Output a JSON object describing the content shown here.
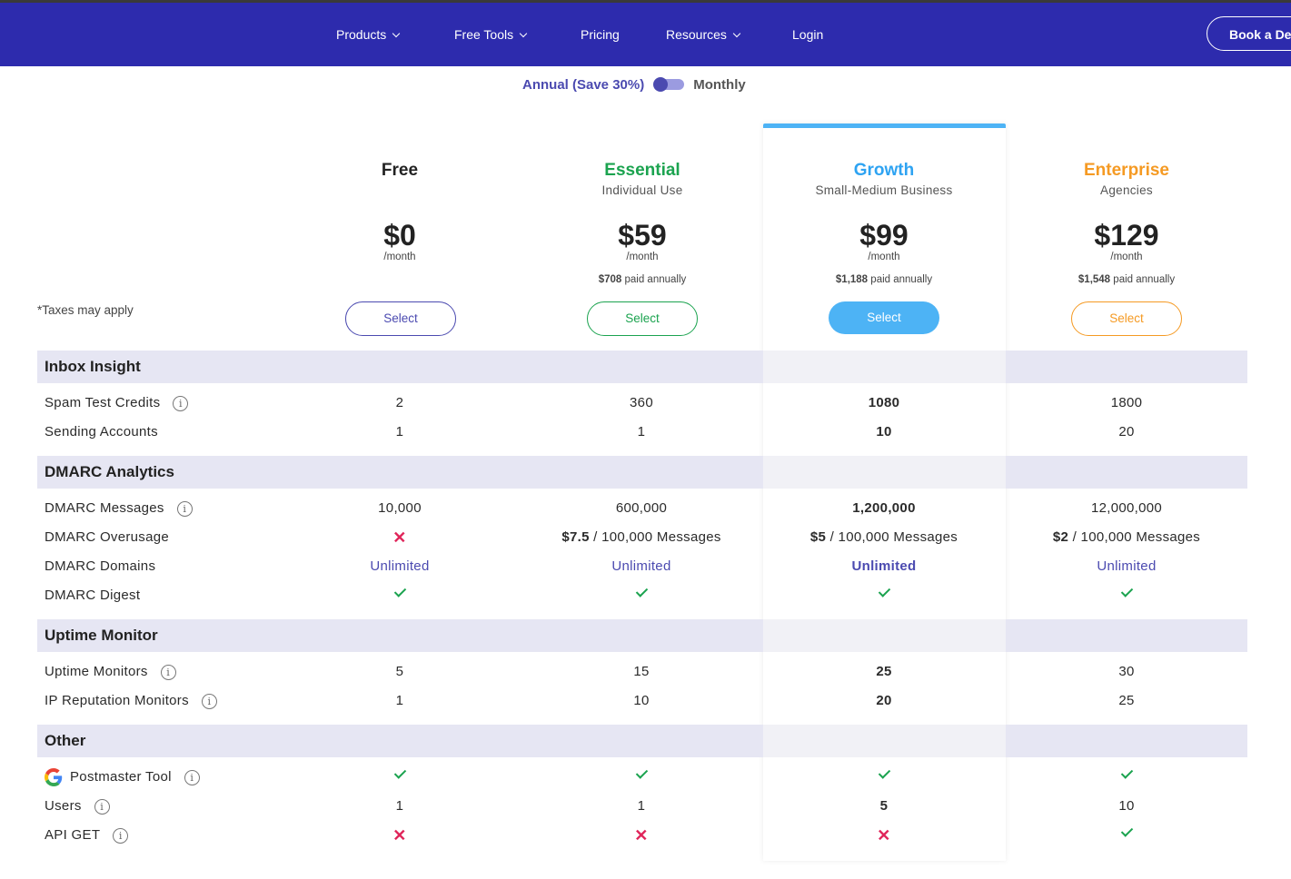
{
  "nav": {
    "items": [
      {
        "label": "Products",
        "dropdown": true
      },
      {
        "label": "Free Tools",
        "dropdown": true
      },
      {
        "label": "Pricing",
        "dropdown": false
      },
      {
        "label": "Resources",
        "dropdown": true
      },
      {
        "label": "Login",
        "dropdown": false
      }
    ],
    "cta": "Book a De"
  },
  "billing_toggle": {
    "annual_label": "Annual (Save 30%)",
    "monthly_label": "Monthly",
    "selected": "annual"
  },
  "taxes_note": "*Taxes may apply",
  "plans": [
    {
      "name": "Free",
      "subtitle": "",
      "price": "$0",
      "period": "/month",
      "annual_amount": "",
      "annual_text": "",
      "button": "Select",
      "color": "#222222"
    },
    {
      "name": "Essential",
      "subtitle": "Individual Use",
      "price": "$59",
      "period": "/month",
      "annual_amount": "$708",
      "annual_text": "paid annually",
      "button": "Select",
      "color": "#1ba34f"
    },
    {
      "name": "Growth",
      "subtitle": "Small-Medium Business",
      "price": "$99",
      "period": "/month",
      "annual_amount": "$1,188",
      "annual_text": "paid annually",
      "button": "Select",
      "color": "#2ea3f2"
    },
    {
      "name": "Enterprise",
      "subtitle": "Agencies",
      "price": "$129",
      "period": "/month",
      "annual_amount": "$1,548",
      "annual_text": "paid annually",
      "button": "Select",
      "color": "#f59a23"
    }
  ],
  "sections": [
    {
      "title": "Inbox Insight",
      "rows": [
        {
          "label": "Spam Test Credits",
          "info": true,
          "values": [
            "2",
            "360",
            "1080",
            "1800"
          ]
        },
        {
          "label": "Sending Accounts",
          "info": false,
          "values": [
            "1",
            "1",
            "10",
            "20"
          ]
        }
      ]
    },
    {
      "title": "DMARC Analytics",
      "rows": [
        {
          "label": "DMARC Messages",
          "info": true,
          "values": [
            "10,000",
            "600,000",
            "1,200,000",
            "12,000,000"
          ]
        },
        {
          "label": "DMARC Overusage",
          "info": false,
          "values": [
            "✕",
            "$7.5|/ 100,000 Messages",
            "$5|/ 100,000 Messages",
            "$2|/ 100,000 Messages"
          ]
        },
        {
          "label": "DMARC Domains",
          "info": false,
          "values": [
            "Unlimited",
            "Unlimited",
            "Unlimited",
            "Unlimited"
          ]
        },
        {
          "label": "DMARC Digest",
          "info": false,
          "values": [
            "✓",
            "✓",
            "✓",
            "✓"
          ]
        }
      ]
    },
    {
      "title": "Uptime Monitor",
      "rows": [
        {
          "label": "Uptime Monitors",
          "info": true,
          "values": [
            "5",
            "15",
            "25",
            "30"
          ]
        },
        {
          "label": "IP Reputation Monitors",
          "info": true,
          "values": [
            "1",
            "10",
            "20",
            "25"
          ]
        }
      ]
    },
    {
      "title": "Other",
      "rows": [
        {
          "label": "Postmaster Tool",
          "info": true,
          "icon": "google-icon",
          "values": [
            "✓",
            "✓",
            "✓",
            "✓"
          ]
        },
        {
          "label": "Users",
          "info": true,
          "values": [
            "1",
            "1",
            "5",
            "10"
          ]
        },
        {
          "label": "API GET",
          "info": true,
          "values": [
            "✕",
            "✕",
            "✕",
            "✓"
          ]
        }
      ]
    }
  ]
}
